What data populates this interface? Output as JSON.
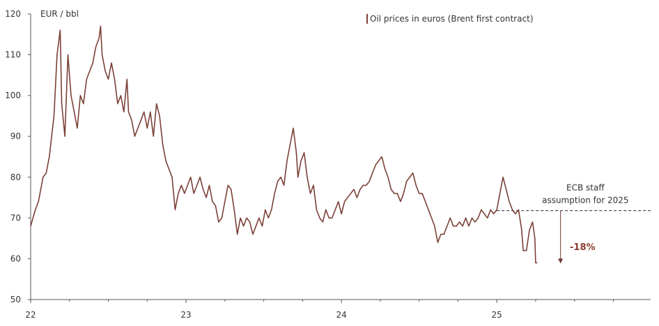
{
  "chart_data": {
    "type": "line",
    "ylabel": "EUR / bbl",
    "ylim": [
      50,
      120
    ],
    "yticks": [
      50,
      60,
      70,
      80,
      90,
      100,
      110,
      120
    ],
    "xlim": [
      2022.0,
      2025.99
    ],
    "xticks": [
      {
        "value": 2022,
        "label": "22"
      },
      {
        "value": 2023,
        "label": "23"
      },
      {
        "value": 2024,
        "label": "24"
      },
      {
        "value": 2025,
        "label": "25"
      }
    ],
    "grid": false,
    "legend_position": "top-right",
    "series": [
      {
        "name": "Oil prices in euros (Brent first contract)",
        "color": "#7a4036",
        "points": [
          [
            2022.0,
            68
          ],
          [
            2022.03,
            72
          ],
          [
            2022.05,
            74
          ],
          [
            2022.08,
            80
          ],
          [
            2022.1,
            81
          ],
          [
            2022.12,
            85
          ],
          [
            2022.15,
            95
          ],
          [
            2022.17,
            110
          ],
          [
            2022.19,
            116
          ],
          [
            2022.2,
            98
          ],
          [
            2022.22,
            90
          ],
          [
            2022.24,
            110
          ],
          [
            2022.26,
            100
          ],
          [
            2022.28,
            96
          ],
          [
            2022.3,
            92
          ],
          [
            2022.32,
            100
          ],
          [
            2022.34,
            98
          ],
          [
            2022.36,
            104
          ],
          [
            2022.38,
            106
          ],
          [
            2022.4,
            108
          ],
          [
            2022.42,
            112
          ],
          [
            2022.44,
            114
          ],
          [
            2022.45,
            117
          ],
          [
            2022.46,
            110
          ],
          [
            2022.48,
            106
          ],
          [
            2022.5,
            104
          ],
          [
            2022.52,
            108
          ],
          [
            2022.54,
            104
          ],
          [
            2022.56,
            98
          ],
          [
            2022.58,
            100
          ],
          [
            2022.6,
            96
          ],
          [
            2022.62,
            104
          ],
          [
            2022.63,
            96
          ],
          [
            2022.65,
            94
          ],
          [
            2022.67,
            90
          ],
          [
            2022.69,
            92
          ],
          [
            2022.71,
            94
          ],
          [
            2022.73,
            96
          ],
          [
            2022.75,
            92
          ],
          [
            2022.77,
            96
          ],
          [
            2022.79,
            90
          ],
          [
            2022.81,
            98
          ],
          [
            2022.83,
            95
          ],
          [
            2022.85,
            88
          ],
          [
            2022.87,
            84
          ],
          [
            2022.89,
            82
          ],
          [
            2022.91,
            80
          ],
          [
            2022.93,
            72
          ],
          [
            2022.95,
            76
          ],
          [
            2022.97,
            78
          ],
          [
            2022.99,
            76
          ],
          [
            2023.01,
            78
          ],
          [
            2023.03,
            80
          ],
          [
            2023.05,
            76
          ],
          [
            2023.07,
            78
          ],
          [
            2023.09,
            80
          ],
          [
            2023.11,
            77
          ],
          [
            2023.13,
            75
          ],
          [
            2023.15,
            78
          ],
          [
            2023.17,
            74
          ],
          [
            2023.19,
            73
          ],
          [
            2023.21,
            69
          ],
          [
            2023.23,
            70
          ],
          [
            2023.25,
            74
          ],
          [
            2023.27,
            78
          ],
          [
            2023.29,
            77
          ],
          [
            2023.31,
            72
          ],
          [
            2023.33,
            66
          ],
          [
            2023.35,
            70
          ],
          [
            2023.37,
            68
          ],
          [
            2023.39,
            70
          ],
          [
            2023.41,
            69
          ],
          [
            2023.43,
            66
          ],
          [
            2023.45,
            68
          ],
          [
            2023.47,
            70
          ],
          [
            2023.49,
            68
          ],
          [
            2023.51,
            72
          ],
          [
            2023.53,
            70
          ],
          [
            2023.55,
            72
          ],
          [
            2023.57,
            76
          ],
          [
            2023.59,
            79
          ],
          [
            2023.61,
            80
          ],
          [
            2023.63,
            78
          ],
          [
            2023.65,
            84
          ],
          [
            2023.67,
            88
          ],
          [
            2023.69,
            92
          ],
          [
            2023.71,
            86
          ],
          [
            2023.72,
            80
          ],
          [
            2023.74,
            84
          ],
          [
            2023.76,
            86
          ],
          [
            2023.78,
            80
          ],
          [
            2023.8,
            76
          ],
          [
            2023.82,
            78
          ],
          [
            2023.84,
            72
          ],
          [
            2023.86,
            70
          ],
          [
            2023.88,
            69
          ],
          [
            2023.9,
            72
          ],
          [
            2023.92,
            70
          ],
          [
            2023.94,
            70
          ],
          [
            2023.96,
            72
          ],
          [
            2023.98,
            74
          ],
          [
            2024.0,
            71
          ],
          [
            2024.02,
            74
          ],
          [
            2024.04,
            75
          ],
          [
            2024.06,
            76
          ],
          [
            2024.08,
            77
          ],
          [
            2024.1,
            75
          ],
          [
            2024.12,
            77
          ],
          [
            2024.14,
            78
          ],
          [
            2024.16,
            78
          ],
          [
            2024.18,
            79
          ],
          [
            2024.2,
            81
          ],
          [
            2024.22,
            83
          ],
          [
            2024.24,
            84
          ],
          [
            2024.26,
            85
          ],
          [
            2024.28,
            82
          ],
          [
            2024.3,
            80
          ],
          [
            2024.32,
            77
          ],
          [
            2024.34,
            76
          ],
          [
            2024.36,
            76
          ],
          [
            2024.38,
            74
          ],
          [
            2024.4,
            76
          ],
          [
            2024.42,
            79
          ],
          [
            2024.44,
            80
          ],
          [
            2024.46,
            81
          ],
          [
            2024.48,
            78
          ],
          [
            2024.5,
            76
          ],
          [
            2024.52,
            76
          ],
          [
            2024.54,
            74
          ],
          [
            2024.56,
            72
          ],
          [
            2024.58,
            70
          ],
          [
            2024.6,
            68
          ],
          [
            2024.62,
            64
          ],
          [
            2024.64,
            66
          ],
          [
            2024.66,
            66
          ],
          [
            2024.68,
            68
          ],
          [
            2024.7,
            70
          ],
          [
            2024.72,
            68
          ],
          [
            2024.74,
            68
          ],
          [
            2024.76,
            69
          ],
          [
            2024.78,
            68
          ],
          [
            2024.8,
            70
          ],
          [
            2024.82,
            68
          ],
          [
            2024.84,
            70
          ],
          [
            2024.86,
            69
          ],
          [
            2024.88,
            70
          ],
          [
            2024.9,
            72
          ],
          [
            2024.92,
            71
          ],
          [
            2024.94,
            70
          ],
          [
            2024.96,
            72
          ],
          [
            2024.98,
            71
          ],
          [
            2025.0,
            72
          ],
          [
            2025.02,
            76
          ],
          [
            2025.04,
            80
          ],
          [
            2025.06,
            77
          ],
          [
            2025.08,
            74
          ],
          [
            2025.1,
            72
          ],
          [
            2025.12,
            71
          ],
          [
            2025.14,
            72
          ],
          [
            2025.16,
            67
          ],
          [
            2025.17,
            62
          ],
          [
            2025.19,
            62
          ],
          [
            2025.21,
            67
          ],
          [
            2025.23,
            69
          ],
          [
            2025.245,
            65
          ],
          [
            2025.25,
            59
          ],
          [
            2025.26,
            59
          ]
        ]
      }
    ],
    "reference_line": {
      "value": 71.8,
      "from_x": 2025.0,
      "to_x": 2025.99,
      "style": "dashed"
    },
    "annotations": [
      {
        "text_lines": [
          "ECB staff",
          "assumption for 2025"
        ],
        "anchor_x": 2025.57,
        "anchor_y": 75.5
      },
      {
        "type": "arrow",
        "x": 2025.41,
        "from_y": 71.8,
        "to_y": 59
      },
      {
        "text": "-18%",
        "x": 2025.47,
        "y": 63,
        "color": "#8b3a30"
      }
    ]
  }
}
